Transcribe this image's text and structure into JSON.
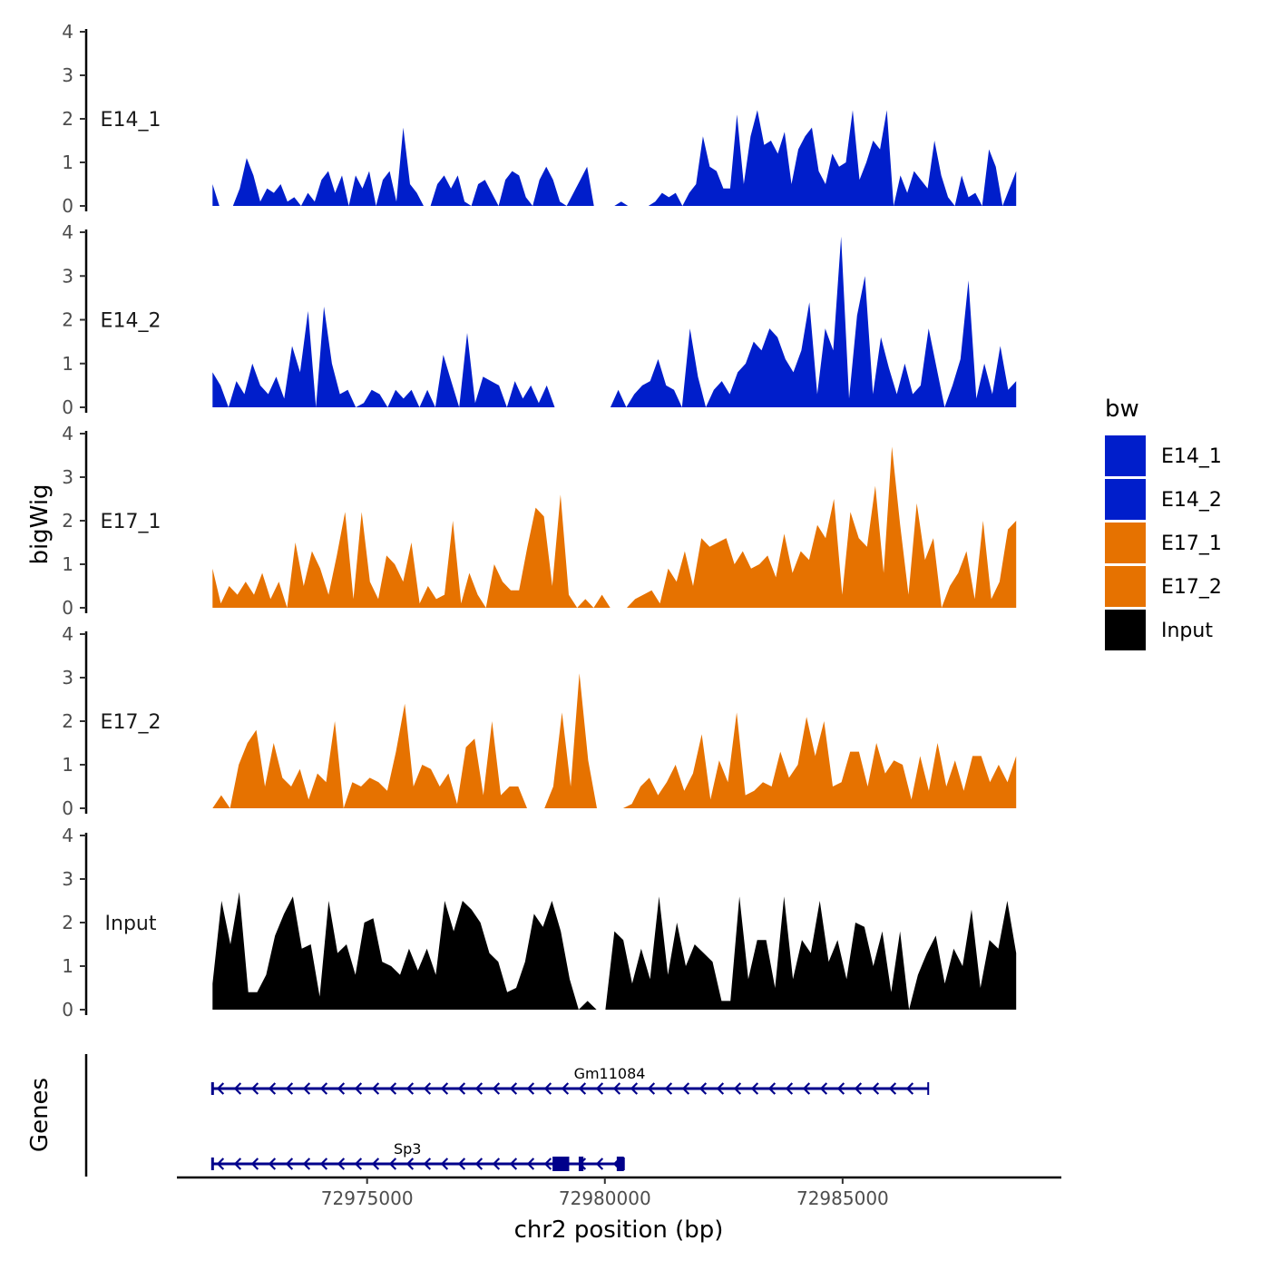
{
  "chart_data": {
    "type": "area",
    "title": "",
    "xlabel": "chr2 position (bp)",
    "ylabel": "bigWig",
    "genes_label": "Genes",
    "xlim": [
      72971000,
      72989600
    ],
    "x_ticks": [
      {
        "value": 72975000,
        "label": "72975000"
      },
      {
        "value": 72980000,
        "label": "72980000"
      },
      {
        "value": 72985000,
        "label": "72985000"
      }
    ],
    "ylim": [
      0,
      4
    ],
    "y_ticks": [
      {
        "value": 0,
        "label": "0"
      },
      {
        "value": 1,
        "label": "1"
      },
      {
        "value": 2,
        "label": "2"
      },
      {
        "value": 3,
        "label": "3"
      },
      {
        "value": 4,
        "label": "4"
      }
    ],
    "legend": {
      "title": "bw",
      "position": "right",
      "entries": [
        {
          "name": "E14_1",
          "color": "#001ECB"
        },
        {
          "name": "E14_2",
          "color": "#001ECB"
        },
        {
          "name": "E17_1",
          "color": "#E67200"
        },
        {
          "name": "E17_2",
          "color": "#E67200"
        },
        {
          "name": "Input",
          "color": "#000000"
        }
      ]
    },
    "series": [
      {
        "name": "E14_1",
        "color": "#001ECB",
        "x_start": 72971750,
        "x_end": 72988650,
        "values": [
          0.5,
          0,
          0,
          0,
          0.4,
          1.1,
          0.7,
          0.1,
          0.4,
          0.3,
          0.5,
          0.1,
          0.2,
          0,
          0.3,
          0.1,
          0.6,
          0.8,
          0.3,
          0.7,
          0,
          0.7,
          0.4,
          0.8,
          0,
          0.6,
          0.8,
          0.1,
          1.8,
          0.5,
          0.3,
          0,
          0,
          0.5,
          0.7,
          0.4,
          0.7,
          0.1,
          0,
          0.5,
          0.6,
          0.3,
          0,
          0.6,
          0.8,
          0.7,
          0.2,
          0,
          0.6,
          0.9,
          0.6,
          0.1,
          0,
          0.3,
          0.6,
          0.9,
          0,
          0,
          0,
          0,
          0.1,
          0,
          0,
          0,
          0,
          0.1,
          0.3,
          0.2,
          0.3,
          0,
          0.3,
          0.5,
          1.6,
          0.9,
          0.8,
          0.4,
          0.4,
          2.1,
          0.5,
          1.6,
          2.2,
          1.4,
          1.5,
          1.2,
          1.7,
          0.5,
          1.3,
          1.6,
          1.8,
          0.8,
          0.5,
          1.2,
          0.9,
          1.0,
          2.2,
          0.6,
          1.0,
          1.5,
          1.3,
          2.2,
          0,
          0.7,
          0.3,
          0.8,
          0.6,
          0.4,
          1.5,
          0.7,
          0.2,
          0,
          0.7,
          0.2,
          0.3,
          0,
          1.3,
          0.9,
          0,
          0.4,
          0.8
        ]
      },
      {
        "name": "E14_2",
        "color": "#001ECB",
        "x_start": 72971750,
        "x_end": 72988650,
        "values": [
          0.8,
          0.5,
          0,
          0.6,
          0.3,
          1.0,
          0.5,
          0.3,
          0.7,
          0.2,
          1.4,
          0.8,
          2.2,
          0,
          2.3,
          1.0,
          0.3,
          0.4,
          0,
          0.1,
          0.4,
          0.3,
          0,
          0.4,
          0.2,
          0.4,
          0,
          0.4,
          0,
          1.2,
          0.6,
          0,
          1.7,
          0.1,
          0.7,
          0.6,
          0.5,
          0,
          0.6,
          0.2,
          0.5,
          0.1,
          0.5,
          0,
          0,
          0,
          0,
          0,
          0,
          0,
          0,
          0.4,
          0,
          0.3,
          0.5,
          0.6,
          1.1,
          0.5,
          0.4,
          0,
          1.8,
          0.7,
          0,
          0.4,
          0.6,
          0.3,
          0.8,
          1.0,
          1.5,
          1.3,
          1.8,
          1.6,
          1.1,
          0.8,
          1.3,
          2.4,
          0.3,
          1.8,
          1.3,
          3.9,
          0.2,
          2.1,
          3.0,
          0.3,
          1.6,
          0.9,
          0.3,
          1.0,
          0.3,
          0.5,
          1.8,
          0.9,
          0,
          0.5,
          1.1,
          2.9,
          0.2,
          1.0,
          0.3,
          1.4,
          0.4,
          0.6
        ]
      },
      {
        "name": "E17_1",
        "color": "#E67200",
        "x_start": 72971750,
        "x_end": 72988650,
        "values": [
          0.9,
          0.1,
          0.5,
          0.3,
          0.6,
          0.3,
          0.8,
          0.2,
          0.6,
          0,
          1.5,
          0.5,
          1.3,
          0.9,
          0.3,
          1.2,
          2.2,
          0.2,
          2.2,
          0.6,
          0.2,
          1.2,
          1.0,
          0.6,
          1.5,
          0.1,
          0.5,
          0.2,
          0.3,
          2.0,
          0.1,
          0.8,
          0.3,
          0,
          1.0,
          0.6,
          0.4,
          0.4,
          1.4,
          2.3,
          2.1,
          0.5,
          2.6,
          0.3,
          0,
          0.2,
          0,
          0.3,
          0,
          0,
          0,
          0.2,
          0.3,
          0.4,
          0.1,
          0.9,
          0.6,
          1.3,
          0.5,
          1.6,
          1.4,
          1.5,
          1.6,
          1.0,
          1.3,
          0.9,
          1.0,
          1.2,
          0.7,
          1.7,
          0.8,
          1.3,
          1.1,
          1.9,
          1.6,
          2.5,
          0.3,
          2.2,
          1.6,
          1.4,
          2.8,
          0.8,
          3.7,
          1.9,
          0.3,
          2.4,
          1.1,
          1.6,
          0,
          0.5,
          0.8,
          1.3,
          0.2,
          2.0,
          0.2,
          0.6,
          1.8,
          2.0
        ]
      },
      {
        "name": "E17_2",
        "color": "#E67200",
        "x_start": 72971750,
        "x_end": 72988650,
        "values": [
          0,
          0.3,
          0,
          1.0,
          1.5,
          1.8,
          0.5,
          1.5,
          0.7,
          0.5,
          0.9,
          0.2,
          0.8,
          0.6,
          2.0,
          0,
          0.6,
          0.5,
          0.7,
          0.6,
          0.4,
          1.3,
          2.4,
          0.5,
          1.0,
          0.9,
          0.5,
          0.8,
          0.1,
          1.4,
          1.6,
          0.3,
          2.0,
          0.3,
          0.5,
          0.5,
          0,
          0,
          0,
          0.5,
          2.2,
          0.5,
          3.1,
          1.1,
          0,
          0,
          0,
          0,
          0.1,
          0.5,
          0.7,
          0.3,
          0.6,
          1.0,
          0.4,
          0.8,
          1.7,
          0.2,
          1.1,
          0.6,
          2.2,
          0.3,
          0.4,
          0.6,
          0.5,
          1.3,
          0.7,
          1.0,
          2.1,
          1.2,
          2.0,
          0.5,
          0.6,
          1.3,
          1.3,
          0.5,
          1.5,
          0.8,
          1.1,
          1.0,
          0.2,
          1.2,
          0.4,
          1.5,
          0.5,
          1.1,
          0.4,
          1.2,
          1.2,
          0.6,
          1.0,
          0.6,
          1.2
        ]
      },
      {
        "name": "Input",
        "color": "#000000",
        "x_start": 72971750,
        "x_end": 72988650,
        "values": [
          0.6,
          2.5,
          1.5,
          2.7,
          0.4,
          0.4,
          0.8,
          1.7,
          2.2,
          2.6,
          1.4,
          1.5,
          0.3,
          2.5,
          1.3,
          1.5,
          0.8,
          2.0,
          2.1,
          1.1,
          1.0,
          0.8,
          1.4,
          0.9,
          1.4,
          0.8,
          2.5,
          1.8,
          2.5,
          2.3,
          2.0,
          1.3,
          1.1,
          0.4,
          0.5,
          1.1,
          2.2,
          1.9,
          2.5,
          1.8,
          0.7,
          0,
          0.2,
          0,
          0,
          1.8,
          1.6,
          0.6,
          1.4,
          0.7,
          2.6,
          0.8,
          2.0,
          1.0,
          1.5,
          1.3,
          1.1,
          0.2,
          0.2,
          2.6,
          0.7,
          1.6,
          1.6,
          0.5,
          2.6,
          0.7,
          1.6,
          1.3,
          2.5,
          1.1,
          1.6,
          0.7,
          2.0,
          1.9,
          1.0,
          1.8,
          0.4,
          1.8,
          0,
          0.8,
          1.3,
          1.7,
          0.6,
          1.4,
          1.0,
          2.3,
          0.5,
          1.6,
          1.4,
          2.5,
          1.3
        ]
      }
    ],
    "genes": [
      {
        "name": "Gm11084",
        "strand": "-",
        "start": 72971750,
        "end": 72986800,
        "exons": []
      },
      {
        "name": "Sp3",
        "strand": "-",
        "start": 72971750,
        "end": 72980400,
        "exons": [
          {
            "start": 72978900,
            "end": 72979250
          },
          {
            "start": 72979450,
            "end": 72979550
          },
          {
            "start": 72980250,
            "end": 72980400
          }
        ]
      }
    ]
  }
}
